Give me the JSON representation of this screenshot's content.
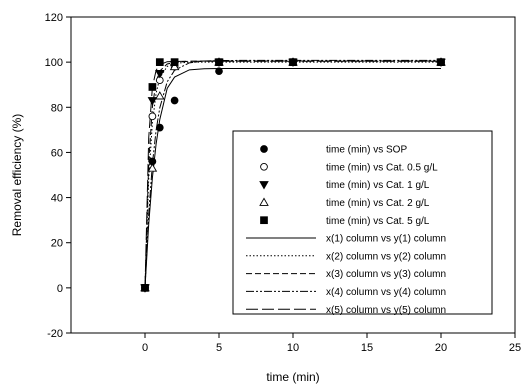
{
  "chart_data": {
    "type": "scatter",
    "title": "",
    "xlabel": "time (min)",
    "ylabel": "Removal efficiency (%)",
    "xlim": [
      -5,
      25
    ],
    "ylim": [
      -20,
      120
    ],
    "xticks": [
      0,
      5,
      10,
      15,
      20,
      25
    ],
    "yticks": [
      -20,
      0,
      20,
      40,
      60,
      80,
      100,
      120
    ],
    "grid": false,
    "legend_position": "center-right",
    "series": [
      {
        "name": "time (min) vs SOP",
        "kind": "points",
        "marker": "filled-circle",
        "x": [
          0,
          0.5,
          1,
          2,
          5,
          10,
          20
        ],
        "y": [
          0,
          56,
          71,
          83,
          96,
          100,
          100
        ]
      },
      {
        "name": "time (min) vs Cat. 0.5 g/L",
        "kind": "points",
        "marker": "open-circle",
        "x": [
          0,
          0.5,
          1,
          2,
          5,
          10,
          20
        ],
        "y": [
          0,
          76,
          92,
          98,
          100,
          100,
          100
        ]
      },
      {
        "name": "time (min) vs Cat. 1 g/L",
        "kind": "points",
        "marker": "filled-triangle-down",
        "x": [
          0,
          0.5,
          1,
          2,
          5,
          10,
          20
        ],
        "y": [
          0,
          83,
          95,
          99,
          100,
          100,
          100
        ]
      },
      {
        "name": "time (min) vs Cat. 2 g/L",
        "kind": "points",
        "marker": "open-triangle-up",
        "x": [
          0,
          0.5,
          1,
          2,
          5,
          10,
          20
        ],
        "y": [
          0,
          53,
          85,
          98,
          100,
          100,
          100
        ]
      },
      {
        "name": "time (min) vs Cat. 5 g/L",
        "kind": "points",
        "marker": "filled-square",
        "x": [
          0,
          0.5,
          1,
          2,
          5,
          10,
          20
        ],
        "y": [
          0,
          89,
          100,
          100,
          100,
          100,
          100
        ]
      },
      {
        "name": "x(1) column vs y(1) column",
        "kind": "curve",
        "dash": "solid",
        "x": [
          0,
          0.25,
          0.5,
          0.75,
          1,
          1.5,
          2,
          3,
          4,
          5,
          7,
          10,
          15,
          20
        ],
        "y": [
          0,
          28.2,
          48.8,
          63.7,
          74.6,
          88.4,
          93.4,
          96.6,
          97.1,
          97.2,
          97.2,
          97.2,
          97.2,
          97.2
        ]
      },
      {
        "name": "x(2) column vs y(2) column",
        "kind": "curve",
        "dash": "dotted",
        "x": [
          0,
          0.25,
          0.5,
          0.75,
          1,
          1.5,
          2,
          3,
          4,
          5,
          7,
          10,
          15,
          20
        ],
        "y": [
          0,
          48.2,
          73.2,
          86.2,
          93.0,
          98.1,
          99.5,
          100,
          100,
          100,
          100,
          100,
          100,
          100
        ]
      },
      {
        "name": "x(3) column vs y(3) column",
        "kind": "curve",
        "dash": "short-dash",
        "x": [
          0,
          0.25,
          0.5,
          0.75,
          1,
          1.5,
          2,
          3,
          4,
          5,
          7,
          10,
          15,
          20
        ],
        "y": [
          0,
          55.6,
          80.2,
          91.3,
          96.1,
          99.2,
          99.9,
          100.4,
          100.5,
          100.5,
          100.5,
          100.5,
          100.5,
          100.5
        ]
      },
      {
        "name": "x(4) column vs y(4) column",
        "kind": "curve",
        "dash": "dash-dot-dot",
        "x": [
          0,
          0.25,
          0.5,
          0.75,
          1,
          1.5,
          2,
          3,
          4,
          5,
          7,
          10,
          15,
          20
        ],
        "y": [
          0,
          32.8,
          54.9,
          69.8,
          79.8,
          91.3,
          96.4,
          99.7,
          100.5,
          100.7,
          100.8,
          100.8,
          100.8,
          100.8
        ]
      },
      {
        "name": "x(5) column vs y(5) column",
        "kind": "curve",
        "dash": "long-dash",
        "x": [
          0,
          0.25,
          0.5,
          0.75,
          1,
          1.5,
          2,
          3,
          4,
          5,
          7,
          10,
          15,
          20
        ],
        "y": [
          0,
          66.4,
          88.9,
          96.4,
          98.9,
          100.2,
          100.3,
          100.4,
          100.4,
          100.4,
          100.4,
          100.4,
          100.4,
          100.4
        ]
      }
    ]
  }
}
